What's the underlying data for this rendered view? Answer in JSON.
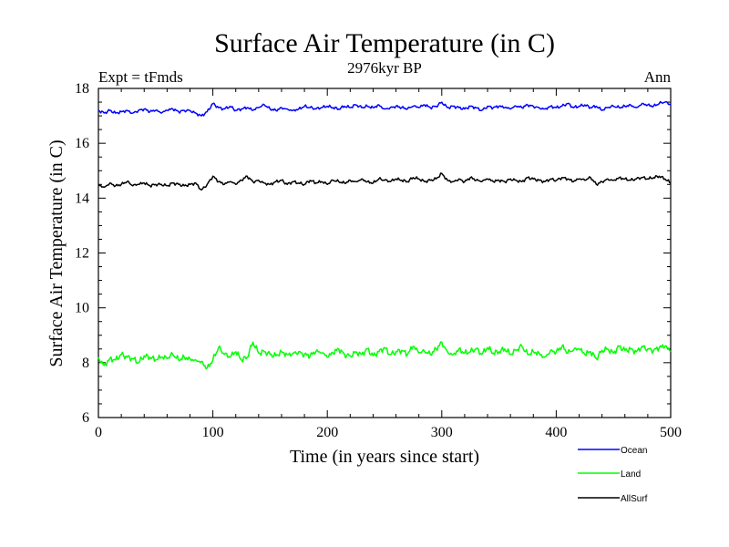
{
  "chart_data": {
    "type": "line",
    "title": "Surface Air Temperature (in C)",
    "subtitle": "2976kyr BP",
    "left_label": "Expt = tFmds",
    "right_label": "Ann",
    "xlabel": "Time (in years since start)",
    "ylabel": "Surface Air Temperature (in C)",
    "xlim": [
      0,
      500
    ],
    "ylim": [
      6,
      18
    ],
    "x_ticks": [
      0,
      100,
      200,
      300,
      400,
      500
    ],
    "y_ticks": [
      6,
      8,
      10,
      12,
      14,
      16,
      18
    ],
    "x_tick_labels": [
      "0",
      "100",
      "200",
      "300",
      "400",
      "500"
    ],
    "y_tick_labels": [
      "6",
      "8",
      "10",
      "12",
      "14",
      "16",
      "18"
    ],
    "x_step": 5,
    "series": [
      {
        "name": "Ocean",
        "color": "#0000ff",
        "values": [
          17.2,
          17.1,
          17.2,
          17.1,
          17.15,
          17.2,
          17.1,
          17.2,
          17.25,
          17.15,
          17.2,
          17.1,
          17.2,
          17.25,
          17.15,
          17.2,
          17.2,
          17.1,
          17.0,
          17.15,
          17.45,
          17.3,
          17.25,
          17.35,
          17.2,
          17.25,
          17.3,
          17.2,
          17.3,
          17.4,
          17.25,
          17.2,
          17.3,
          17.25,
          17.2,
          17.25,
          17.35,
          17.3,
          17.25,
          17.3,
          17.35,
          17.3,
          17.25,
          17.35,
          17.3,
          17.4,
          17.3,
          17.35,
          17.3,
          17.4,
          17.25,
          17.3,
          17.35,
          17.3,
          17.25,
          17.35,
          17.3,
          17.4,
          17.3,
          17.35,
          17.5,
          17.3,
          17.35,
          17.3,
          17.25,
          17.35,
          17.3,
          17.2,
          17.35,
          17.3,
          17.35,
          17.3,
          17.25,
          17.35,
          17.3,
          17.4,
          17.35,
          17.3,
          17.25,
          17.35,
          17.3,
          17.35,
          17.45,
          17.3,
          17.35,
          17.4,
          17.3,
          17.35,
          17.2,
          17.3,
          17.35,
          17.3,
          17.35,
          17.4,
          17.3,
          17.45,
          17.4,
          17.35,
          17.45,
          17.5,
          17.4
        ]
      },
      {
        "name": "Land",
        "color": "#00ff00",
        "values": [
          8.2,
          7.9,
          8.15,
          8.1,
          8.3,
          8.2,
          8.15,
          8.0,
          8.25,
          8.2,
          8.1,
          8.2,
          8.15,
          8.3,
          8.1,
          8.2,
          8.15,
          8.1,
          8.05,
          7.8,
          8.1,
          8.55,
          8.3,
          8.2,
          8.4,
          8.1,
          8.2,
          8.75,
          8.35,
          8.4,
          8.3,
          8.25,
          8.4,
          8.3,
          8.35,
          8.4,
          8.3,
          8.25,
          8.4,
          8.35,
          8.2,
          8.35,
          8.5,
          8.3,
          8.25,
          8.4,
          8.3,
          8.5,
          8.25,
          8.4,
          8.55,
          8.3,
          8.4,
          8.45,
          8.3,
          8.6,
          8.35,
          8.4,
          8.3,
          8.5,
          8.75,
          8.4,
          8.3,
          8.5,
          8.35,
          8.4,
          8.5,
          8.3,
          8.55,
          8.35,
          8.4,
          8.5,
          8.3,
          8.45,
          8.6,
          8.3,
          8.4,
          8.35,
          8.2,
          8.45,
          8.4,
          8.6,
          8.35,
          8.45,
          8.5,
          8.3,
          8.4,
          8.15,
          8.45,
          8.5,
          8.35,
          8.6,
          8.45,
          8.5,
          8.4,
          8.6,
          8.5,
          8.45,
          8.55,
          8.6,
          8.4
        ]
      },
      {
        "name": "AllSurf",
        "color": "#000000",
        "values": [
          14.5,
          14.4,
          14.55,
          14.45,
          14.5,
          14.6,
          14.45,
          14.5,
          14.55,
          14.45,
          14.5,
          14.5,
          14.45,
          14.55,
          14.5,
          14.45,
          14.5,
          14.55,
          14.3,
          14.5,
          14.8,
          14.6,
          14.5,
          14.6,
          14.5,
          14.65,
          14.8,
          14.6,
          14.65,
          14.55,
          14.5,
          14.6,
          14.65,
          14.5,
          14.6,
          14.55,
          14.5,
          14.65,
          14.55,
          14.6,
          14.5,
          14.65,
          14.6,
          14.55,
          14.65,
          14.6,
          14.7,
          14.6,
          14.55,
          14.7,
          14.65,
          14.6,
          14.7,
          14.65,
          14.6,
          14.75,
          14.7,
          14.6,
          14.65,
          14.7,
          14.9,
          14.65,
          14.6,
          14.7,
          14.6,
          14.75,
          14.65,
          14.6,
          14.7,
          14.6,
          14.65,
          14.6,
          14.7,
          14.65,
          14.6,
          14.75,
          14.7,
          14.65,
          14.6,
          14.7,
          14.65,
          14.75,
          14.7,
          14.6,
          14.7,
          14.65,
          14.75,
          14.5,
          14.6,
          14.7,
          14.65,
          14.75,
          14.7,
          14.65,
          14.7,
          14.75,
          14.7,
          14.75,
          14.8,
          14.7,
          14.55
        ]
      }
    ]
  }
}
